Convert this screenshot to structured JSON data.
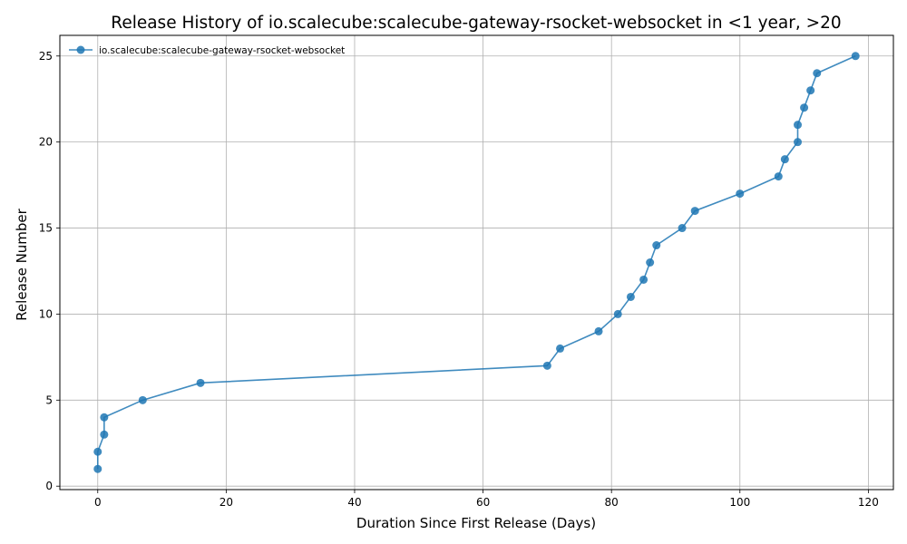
{
  "chart_data": {
    "type": "line",
    "title": "Release History of io.scalecube:scalecube-gateway-rsocket-websocket in <1 year, >20",
    "xlabel": "Duration Since First Release (Days)",
    "ylabel": "Release Number",
    "xlim": [
      -5.9,
      123.9
    ],
    "ylim": [
      -0.2,
      26.2
    ],
    "xticks": [
      0,
      20,
      40,
      60,
      80,
      100,
      120
    ],
    "yticks": [
      0,
      5,
      10,
      15,
      20,
      25
    ],
    "grid": true,
    "legend_position": "top-left",
    "series": [
      {
        "name": "io.scalecube:scalecube-gateway-rsocket-websocket",
        "color": "#1f77b4",
        "x": [
          0,
          0,
          1,
          1,
          7,
          16,
          70,
          72,
          78,
          81,
          83,
          85,
          86,
          87,
          91,
          93,
          100,
          106,
          107,
          109,
          109,
          110,
          111,
          112,
          118
        ],
        "y": [
          1,
          2,
          3,
          4,
          5,
          6,
          7,
          8,
          9,
          10,
          11,
          12,
          13,
          14,
          15,
          16,
          17,
          18,
          19,
          20,
          21,
          22,
          23,
          24,
          25
        ]
      }
    ]
  }
}
